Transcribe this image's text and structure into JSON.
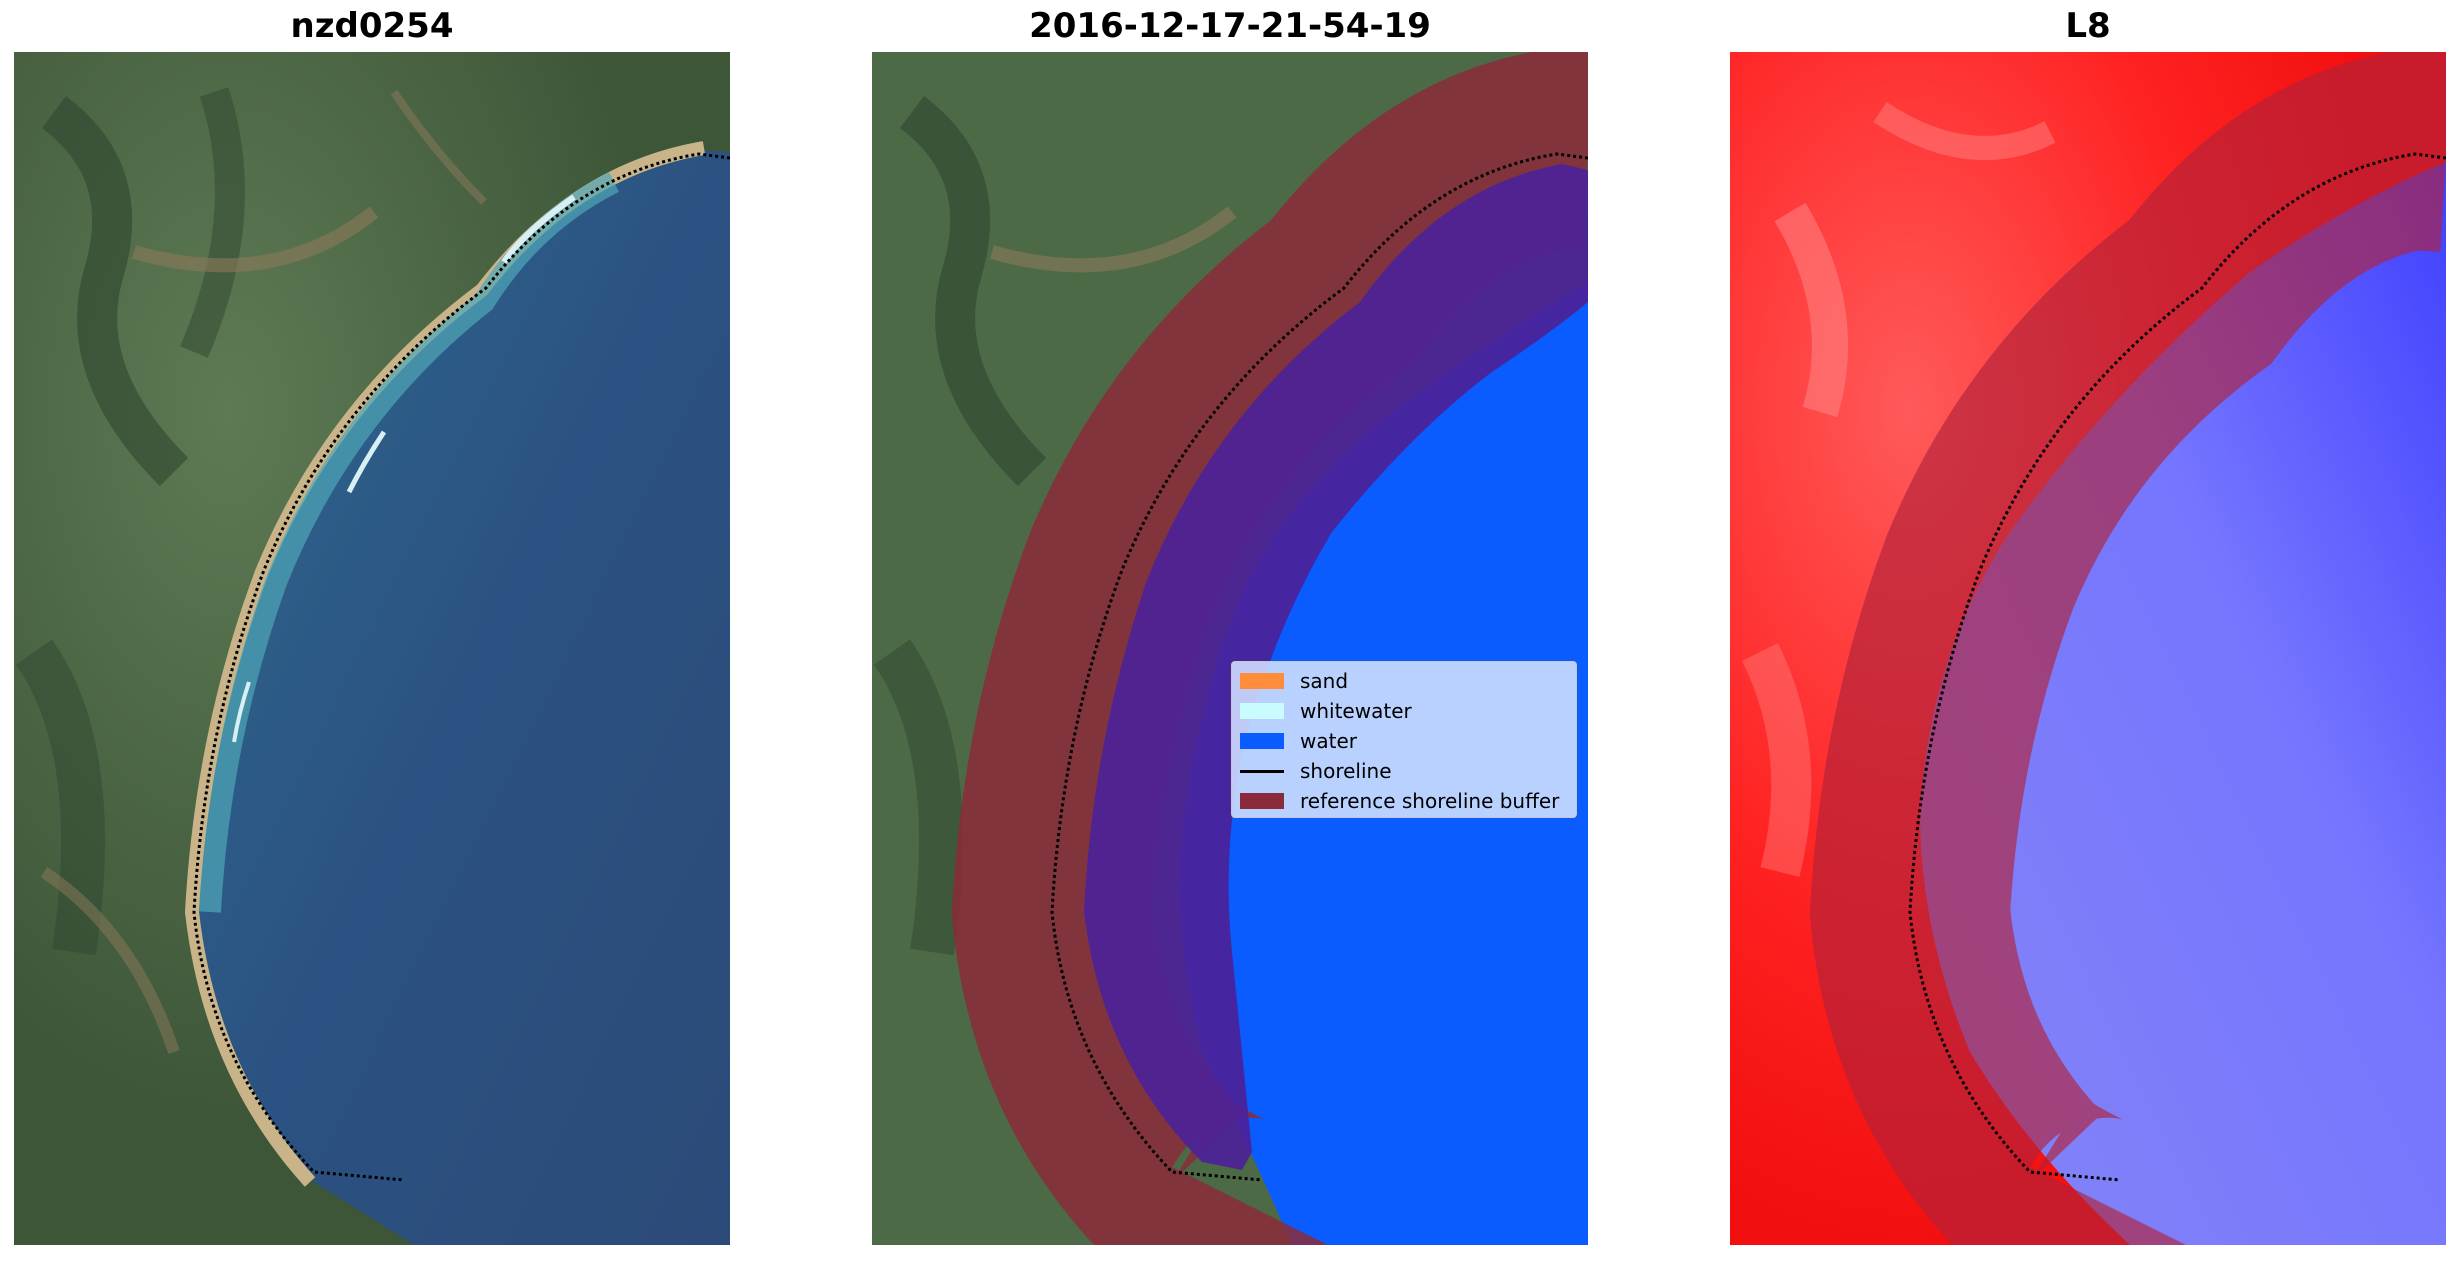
{
  "panels": [
    {
      "title": "nzd0254"
    },
    {
      "title": "2016-12-17-21-54-19"
    },
    {
      "title": "L8"
    }
  ],
  "legend": {
    "items": [
      {
        "label": "sand",
        "color": "#ff8c3a"
      },
      {
        "label": "whitewater",
        "color": "#c8fcff"
      },
      {
        "label": "water",
        "color": "#0a5cff"
      },
      {
        "label": "shoreline",
        "color": "#000000"
      },
      {
        "label": "reference shoreline buffer",
        "color": "#8b2a3a"
      }
    ]
  },
  "colors": {
    "land": "#4d6a46",
    "sea_rgb": "#2d5580",
    "buffer": "#8b2a3a",
    "water_class": "#0a5cff",
    "index_land": "#ff2020",
    "index_water": "#7070ff"
  }
}
